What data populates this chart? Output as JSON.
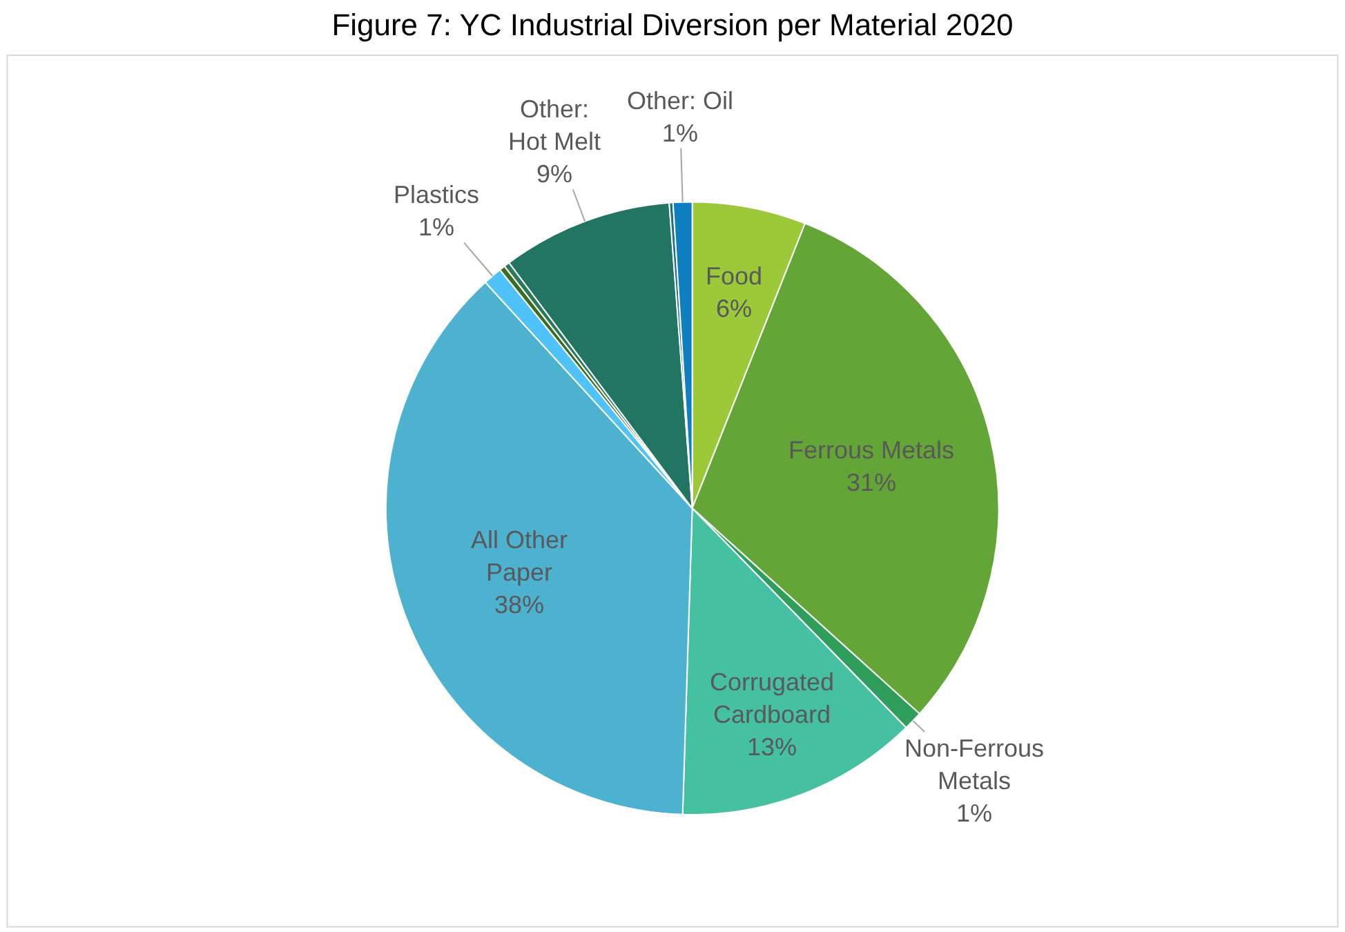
{
  "chart_data": {
    "type": "pie",
    "title": "Figure 7: YC Industrial Diversion per Material 2020",
    "categories": [
      "Food",
      "Ferrous Metals",
      "Non-Ferrous Metals",
      "Corrugated Cardboard",
      "All Other Paper",
      "Plastics",
      null,
      null,
      "Other: Hot Melt",
      null,
      "Other: Oil"
    ],
    "values": [
      6,
      30.7,
      1,
      12.8,
      37.7,
      1,
      0.3,
      0.3,
      9,
      0.2,
      1
    ],
    "value_labels": [
      "6%",
      "31%",
      "1%",
      "13%",
      "38%",
      "1%",
      null,
      null,
      "9%",
      null,
      "1%"
    ],
    "colors": [
      "#9bc93a",
      "#63a536",
      "#2e9e5a",
      "#45c1a2",
      "#4db1d0",
      "#4fc3f7",
      "#3a6e1f",
      "#2a7a5a",
      "#237563",
      "#1d6f8a",
      "#0f7fc2"
    ],
    "legend": false
  }
}
